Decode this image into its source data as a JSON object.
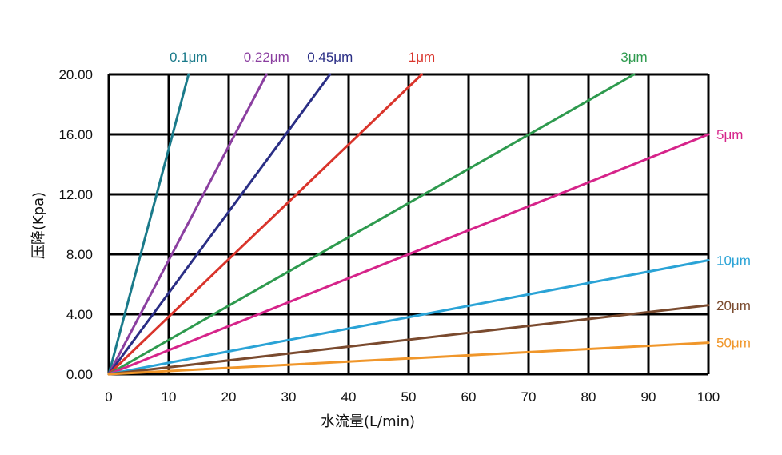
{
  "chart_data": {
    "type": "line",
    "xlabel": "水流量(L/min)",
    "ylabel": "压降(Kpa)",
    "xlim": [
      0,
      100
    ],
    "ylim": [
      0,
      20
    ],
    "grid": true,
    "x_ticks": [
      "0",
      "10",
      "20",
      "30",
      "40",
      "50",
      "60",
      "70",
      "80",
      "90",
      "100"
    ],
    "y_ticks": [
      "0.00",
      "4.00",
      "8.00",
      "12.00",
      "16.00",
      "20.00"
    ],
    "series": [
      {
        "name": "0.1μm",
        "color": "#1a7a8a",
        "points": [
          [
            0,
            0
          ],
          [
            13.3,
            20
          ]
        ]
      },
      {
        "name": "0.22μm",
        "color": "#8b3fa0",
        "points": [
          [
            0,
            0
          ],
          [
            26.3,
            20
          ]
        ]
      },
      {
        "name": "0.45μm",
        "color": "#2a2e85",
        "points": [
          [
            0,
            0
          ],
          [
            36.9,
            20
          ]
        ]
      },
      {
        "name": "1μm",
        "color": "#d9342b",
        "points": [
          [
            0,
            0
          ],
          [
            52.2,
            20
          ]
        ]
      },
      {
        "name": "3μm",
        "color": "#2e9a4e",
        "points": [
          [
            0,
            0
          ],
          [
            87.6,
            20
          ]
        ]
      },
      {
        "name": "5μm",
        "color": "#d6248a",
        "points": [
          [
            0,
            0
          ],
          [
            100,
            16.0
          ]
        ]
      },
      {
        "name": "10μm",
        "color": "#2aa3d6",
        "points": [
          [
            0,
            0
          ],
          [
            100,
            7.6
          ]
        ]
      },
      {
        "name": "20μm",
        "color": "#7a4a2e",
        "points": [
          [
            0,
            0
          ],
          [
            100,
            4.6
          ]
        ]
      },
      {
        "name": "50μm",
        "color": "#f0962a",
        "points": [
          [
            0,
            0
          ],
          [
            100,
            2.1
          ]
        ]
      }
    ]
  }
}
